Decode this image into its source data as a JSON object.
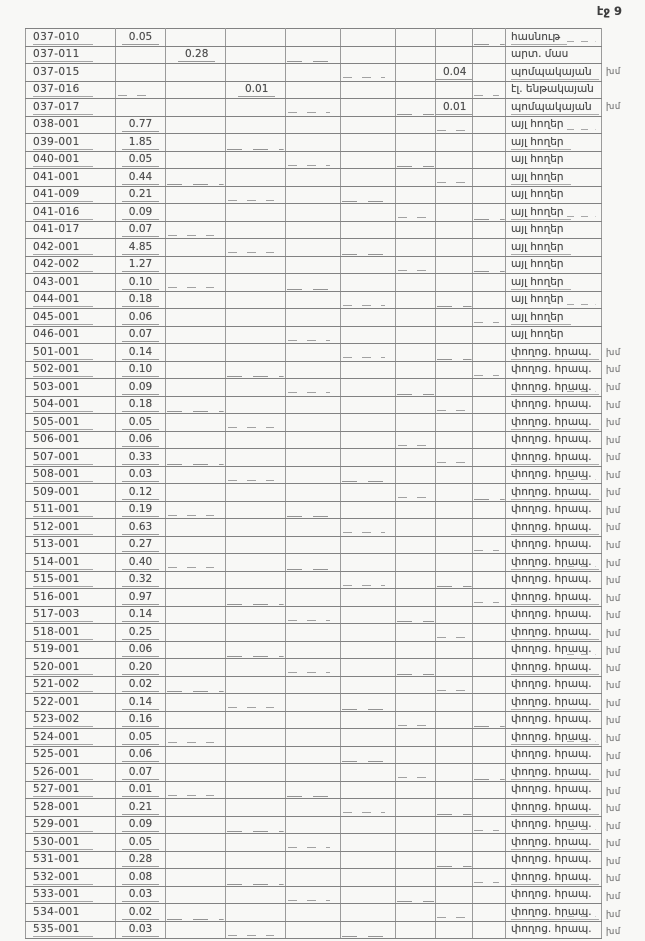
{
  "page": {
    "page_label": "էջ 9"
  },
  "table": {
    "rows": [
      {
        "id": "037-010",
        "val": "0.05",
        "col": 2,
        "label": "հասնութ",
        "note": ""
      },
      {
        "id": "037-011",
        "val": "0.28",
        "col": 3,
        "label": "արտ. մաս",
        "note": ""
      },
      {
        "id": "037-015",
        "val": "0.04",
        "col": 8,
        "label": "պոմպակայան",
        "note": "խմ"
      },
      {
        "id": "037-016",
        "val": "0.01",
        "col": 4,
        "label": "էլ. ենթակայան",
        "note": ""
      },
      {
        "id": "037-017",
        "val": "0.01",
        "col": 8,
        "label": "պոմպակայան",
        "note": "խմ"
      },
      {
        "id": "038-001",
        "val": "0.77",
        "col": 2,
        "label": "այլ հողեր",
        "note": ""
      },
      {
        "id": "039-001",
        "val": "1.85",
        "col": 2,
        "label": "այլ հողեր",
        "note": ""
      },
      {
        "id": "040-001",
        "val": "0.05",
        "col": 2,
        "label": "այլ հողեր",
        "note": ""
      },
      {
        "id": "041-001",
        "val": "0.44",
        "col": 2,
        "label": "այլ հողեր",
        "note": ""
      },
      {
        "id": "041-009",
        "val": "0.21",
        "col": 2,
        "label": "այլ հողեր",
        "note": ""
      },
      {
        "id": "041-016",
        "val": "0.09",
        "col": 2,
        "label": "այլ հողեր",
        "note": ""
      },
      {
        "id": "041-017",
        "val": "0.07",
        "col": 2,
        "label": "այլ հողեր",
        "note": ""
      },
      {
        "id": "042-001",
        "val": "4.85",
        "col": 2,
        "label": "այլ հողեր",
        "note": ""
      },
      {
        "id": "042-002",
        "val": "1.27",
        "col": 2,
        "label": "այլ հողեր",
        "note": ""
      },
      {
        "id": "043-001",
        "val": "0.10",
        "col": 2,
        "label": "այլ հողեր",
        "note": ""
      },
      {
        "id": "044-001",
        "val": "0.18",
        "col": 2,
        "label": "այլ հողեր",
        "note": ""
      },
      {
        "id": "045-001",
        "val": "0.06",
        "col": 2,
        "label": "այլ հողեր",
        "note": ""
      },
      {
        "id": "046-001",
        "val": "0.07",
        "col": 2,
        "label": "այլ հողեր",
        "note": ""
      },
      {
        "id": "501-001",
        "val": "0.14",
        "col": 2,
        "label": "փողոց. հրապ.",
        "note": "խմ"
      },
      {
        "id": "502-001",
        "val": "0.10",
        "col": 2,
        "label": "փողոց. հրապ.",
        "note": "խմ"
      },
      {
        "id": "503-001",
        "val": "0.09",
        "col": 2,
        "label": "փողոց. հրապ.",
        "note": "խմ"
      },
      {
        "id": "504-001",
        "val": "0.18",
        "col": 2,
        "label": "փողոց. հրապ.",
        "note": "խմ"
      },
      {
        "id": "505-001",
        "val": "0.05",
        "col": 2,
        "label": "փողոց. հրապ.",
        "note": "խմ"
      },
      {
        "id": "506-001",
        "val": "0.06",
        "col": 2,
        "label": "փողոց. հրապ.",
        "note": "խմ"
      },
      {
        "id": "507-001",
        "val": "0.33",
        "col": 2,
        "label": "փողոց. հրապ.",
        "note": "խմ"
      },
      {
        "id": "508-001",
        "val": "0.03",
        "col": 2,
        "label": "փողոց. հրապ.",
        "note": "խմ"
      },
      {
        "id": "509-001",
        "val": "0.12",
        "col": 2,
        "label": "փողոց. հրապ.",
        "note": "խմ"
      },
      {
        "id": "511-001",
        "val": "0.19",
        "col": 2,
        "label": "փողոց. հրապ.",
        "note": "խմ"
      },
      {
        "id": "512-001",
        "val": "0.63",
        "col": 2,
        "label": "փողոց. հրապ.",
        "note": "խմ"
      },
      {
        "id": "513-001",
        "val": "0.27",
        "col": 2,
        "label": "փողոց. հրապ.",
        "note": "խմ"
      },
      {
        "id": "514-001",
        "val": "0.40",
        "col": 2,
        "label": "փողոց. հրապ.",
        "note": "խմ"
      },
      {
        "id": "515-001",
        "val": "0.32",
        "col": 2,
        "label": "փողոց. հրապ.",
        "note": "խմ"
      },
      {
        "id": "516-001",
        "val": "0.97",
        "col": 2,
        "label": "փողոց. հրապ.",
        "note": "խմ"
      },
      {
        "id": "517-003",
        "val": "0.14",
        "col": 2,
        "label": "փողոց. հրապ.",
        "note": "խմ"
      },
      {
        "id": "518-001",
        "val": "0.25",
        "col": 2,
        "label": "փողոց. հրապ.",
        "note": "խմ"
      },
      {
        "id": "519-001",
        "val": "0.06",
        "col": 2,
        "label": "փողոց. հրապ.",
        "note": "խմ"
      },
      {
        "id": "520-001",
        "val": "0.20",
        "col": 2,
        "label": "փողոց. հրապ.",
        "note": "խմ"
      },
      {
        "id": "521-002",
        "val": "0.02",
        "col": 2,
        "label": "փողոց. հրապ.",
        "note": "խմ"
      },
      {
        "id": "522-001",
        "val": "0.14",
        "col": 2,
        "label": "փողոց. հրապ.",
        "note": "խմ"
      },
      {
        "id": "523-002",
        "val": "0.16",
        "col": 2,
        "label": "փողոց. հրապ.",
        "note": "խմ"
      },
      {
        "id": "524-001",
        "val": "0.05",
        "col": 2,
        "label": "փողոց. հրապ.",
        "note": "խմ"
      },
      {
        "id": "525-001",
        "val": "0.06",
        "col": 2,
        "label": "փողոց. հրապ.",
        "note": "խմ"
      },
      {
        "id": "526-001",
        "val": "0.07",
        "col": 2,
        "label": "փողոց. հրապ.",
        "note": "խմ"
      },
      {
        "id": "527-001",
        "val": "0.01",
        "col": 2,
        "label": "փողոց. հրապ.",
        "note": "խմ"
      },
      {
        "id": "528-001",
        "val": "0.21",
        "col": 2,
        "label": "փողոց. հրապ.",
        "note": "խմ"
      },
      {
        "id": "529-001",
        "val": "0.09",
        "col": 2,
        "label": "փողոց. հրապ.",
        "note": "խմ"
      },
      {
        "id": "530-001",
        "val": "0.05",
        "col": 2,
        "label": "փողոց. հրապ.",
        "note": "խմ"
      },
      {
        "id": "531-001",
        "val": "0.28",
        "col": 2,
        "label": "փողոց. հրապ.",
        "note": "խմ"
      },
      {
        "id": "532-001",
        "val": "0.08",
        "col": 2,
        "label": "փողոց. հրապ.",
        "note": "խմ"
      },
      {
        "id": "533-001",
        "val": "0.03",
        "col": 2,
        "label": "փողոց. հրապ.",
        "note": "խմ"
      },
      {
        "id": "534-001",
        "val": "0.02",
        "col": 2,
        "label": "փողոց. հրապ.",
        "note": "խմ"
      },
      {
        "id": "535-001",
        "val": "0.03",
        "col": 2,
        "label": "փողոց. հրապ.",
        "note": "խմ"
      }
    ]
  }
}
